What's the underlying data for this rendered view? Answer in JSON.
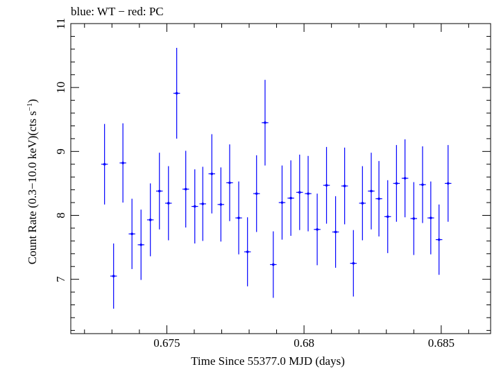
{
  "chart_data": {
    "type": "scatter",
    "title": "blue: WT − red: PC",
    "xlabel": "Time Since 55377.0 MJD (days)",
    "ylabel_main": "Count Rate (0.3−10.0 keV)(cts s",
    "ylabel_sup": "−1",
    "ylabel_end": ")",
    "xlim": [
      0.6715,
      0.6868
    ],
    "ylim": [
      6.15,
      11.0
    ],
    "x_ticks": [
      0.675,
      0.68,
      0.685
    ],
    "x_tick_labels": [
      "0.675",
      "0.68",
      "0.685"
    ],
    "y_ticks": [
      7,
      8,
      9,
      10,
      11
    ],
    "y_tick_labels": [
      "7",
      "8",
      "9",
      "10",
      "11"
    ],
    "grid": false,
    "series": [
      {
        "color": "#0000ff",
        "x_half_width": 0.00012,
        "points": [
          {
            "x": 0.67273,
            "y": 8.8,
            "err": 0.63
          },
          {
            "x": 0.67306,
            "y": 7.05,
            "err": 0.51
          },
          {
            "x": 0.6734,
            "y": 8.82,
            "err": 0.62
          },
          {
            "x": 0.67373,
            "y": 7.71,
            "err": 0.55
          },
          {
            "x": 0.67406,
            "y": 7.54,
            "err": 0.55
          },
          {
            "x": 0.6744,
            "y": 7.93,
            "err": 0.57
          },
          {
            "x": 0.67473,
            "y": 8.38,
            "err": 0.6
          },
          {
            "x": 0.67506,
            "y": 8.19,
            "err": 0.58
          },
          {
            "x": 0.67536,
            "y": 9.91,
            "err": 0.71
          },
          {
            "x": 0.67569,
            "y": 8.41,
            "err": 0.6
          },
          {
            "x": 0.67602,
            "y": 8.14,
            "err": 0.58
          },
          {
            "x": 0.67631,
            "y": 8.18,
            "err": 0.58
          },
          {
            "x": 0.67664,
            "y": 8.65,
            "err": 0.62
          },
          {
            "x": 0.67697,
            "y": 8.17,
            "err": 0.58
          },
          {
            "x": 0.67729,
            "y": 8.51,
            "err": 0.6
          },
          {
            "x": 0.67762,
            "y": 7.96,
            "err": 0.57
          },
          {
            "x": 0.67794,
            "y": 7.43,
            "err": 0.54
          },
          {
            "x": 0.67827,
            "y": 8.34,
            "err": 0.6
          },
          {
            "x": 0.67858,
            "y": 9.45,
            "err": 0.67
          },
          {
            "x": 0.67888,
            "y": 7.23,
            "err": 0.52
          },
          {
            "x": 0.6792,
            "y": 8.2,
            "err": 0.58
          },
          {
            "x": 0.67952,
            "y": 8.27,
            "err": 0.59
          },
          {
            "x": 0.67984,
            "y": 8.36,
            "err": 0.59
          },
          {
            "x": 0.68015,
            "y": 8.34,
            "err": 0.59
          },
          {
            "x": 0.68048,
            "y": 7.78,
            "err": 0.56
          },
          {
            "x": 0.68082,
            "y": 8.47,
            "err": 0.6
          },
          {
            "x": 0.68115,
            "y": 7.74,
            "err": 0.56
          },
          {
            "x": 0.68148,
            "y": 8.46,
            "err": 0.6
          },
          {
            "x": 0.6818,
            "y": 7.25,
            "err": 0.52
          },
          {
            "x": 0.68213,
            "y": 8.19,
            "err": 0.58
          },
          {
            "x": 0.68245,
            "y": 8.38,
            "err": 0.6
          },
          {
            "x": 0.68273,
            "y": 8.26,
            "err": 0.59
          },
          {
            "x": 0.68305,
            "y": 7.98,
            "err": 0.57
          },
          {
            "x": 0.68337,
            "y": 8.5,
            "err": 0.6
          },
          {
            "x": 0.68368,
            "y": 8.58,
            "err": 0.61
          },
          {
            "x": 0.684,
            "y": 7.95,
            "err": 0.57
          },
          {
            "x": 0.68432,
            "y": 8.48,
            "err": 0.6
          },
          {
            "x": 0.68462,
            "y": 7.96,
            "err": 0.57
          },
          {
            "x": 0.68492,
            "y": 7.62,
            "err": 0.55
          },
          {
            "x": 0.68525,
            "y": 8.5,
            "err": 0.6
          }
        ]
      }
    ]
  }
}
